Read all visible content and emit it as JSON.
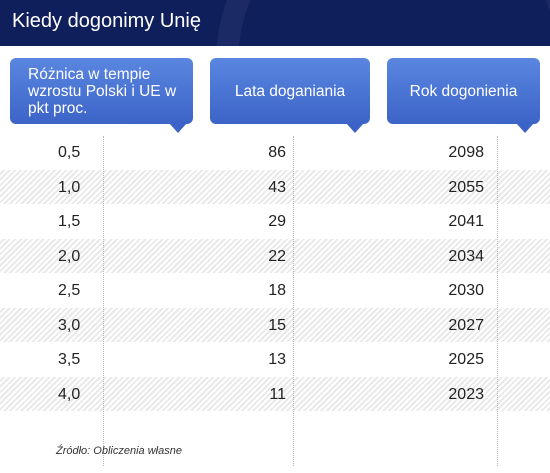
{
  "title": "Kiedy dogonimy Unię",
  "chart_data": {
    "type": "table",
    "columns": [
      "Różnica w tempie wzrostu Polski i UE w pkt proc.",
      "Lata doganiania",
      "Rok dogonienia"
    ],
    "rows": [
      [
        "0,5",
        "86",
        "2098"
      ],
      [
        "1,0",
        "43",
        "2055"
      ],
      [
        "1,5",
        "29",
        "2041"
      ],
      [
        "2,0",
        "22",
        "2034"
      ],
      [
        "2,5",
        "18",
        "2030"
      ],
      [
        "3,0",
        "15",
        "2027"
      ],
      [
        "3,5",
        "13",
        "2025"
      ],
      [
        "4,0",
        "11",
        "2023"
      ]
    ]
  },
  "source": "Źródło: Obliczenia własne",
  "colors": {
    "title_bar": "#0f1f5c",
    "header": "#4a74d6",
    "stripe": "#e9e9e9"
  }
}
